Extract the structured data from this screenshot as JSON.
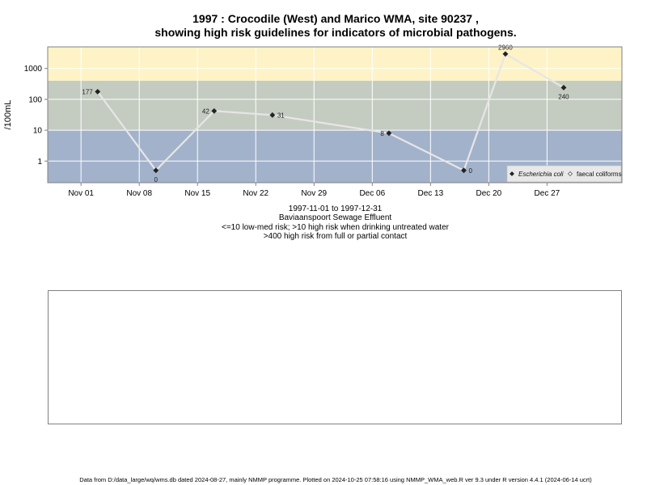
{
  "chart_data": {
    "type": "line",
    "title_line1": "1997 : Crocodile (West) and Marico WMA, site 90237 ,",
    "title_line2": "showing high risk guidelines for indicators of microbial pathogens.",
    "ylabel": "/100mL",
    "y_scale": "log10",
    "ylim": [
      0.2,
      5000
    ],
    "y_ticks": [
      {
        "value": 1,
        "label": "1"
      },
      {
        "value": 10,
        "label": "10"
      },
      {
        "value": 100,
        "label": "100"
      },
      {
        "value": 1000,
        "label": "1000"
      }
    ],
    "xlim": [
      "1997-10-28",
      "1998-01-05"
    ],
    "x_ticks": [
      {
        "date": "1997-11-01",
        "label": "Nov 01"
      },
      {
        "date": "1997-11-08",
        "label": "Nov 08"
      },
      {
        "date": "1997-11-15",
        "label": "Nov 15"
      },
      {
        "date": "1997-11-22",
        "label": "Nov 22"
      },
      {
        "date": "1997-11-29",
        "label": "Nov 29"
      },
      {
        "date": "1997-12-06",
        "label": "Dec 06"
      },
      {
        "date": "1997-12-13",
        "label": "Dec 13"
      },
      {
        "date": "1997-12-20",
        "label": "Dec 20"
      },
      {
        "date": "1997-12-27",
        "label": "Dec 27"
      }
    ],
    "risk_bands": [
      {
        "from": 400,
        "to": 5000,
        "color": "#fdf3c6"
      },
      {
        "from": 10,
        "to": 400,
        "color": "#c4ccc2"
      },
      {
        "from": 0.2,
        "to": 10,
        "color": "#a3b2cb"
      }
    ],
    "series": [
      {
        "name": "Escherichia coli",
        "marker": "diamond-filled",
        "line_color": "#e6e6e6",
        "points": [
          {
            "x": "1997-11-03",
            "y": 177,
            "label": "177",
            "label_pos": "left"
          },
          {
            "x": "1997-11-10",
            "y": 0.5,
            "label": "0",
            "label_pos": "below"
          },
          {
            "x": "1997-11-17",
            "y": 42,
            "label": "42",
            "label_pos": "left"
          },
          {
            "x": "1997-11-24",
            "y": 31,
            "label": "31",
            "label_pos": "right"
          },
          {
            "x": "1997-12-08",
            "y": 8,
            "label": "8",
            "label_pos": "left"
          },
          {
            "x": "1997-12-17",
            "y": 0.5,
            "label": "0",
            "label_pos": "right"
          },
          {
            "x": "1997-12-22",
            "y": 2960,
            "label": "2960",
            "label_pos": "above"
          },
          {
            "x": "1997-12-29",
            "y": 240,
            "label": "240",
            "label_pos": "below"
          }
        ]
      }
    ],
    "legend": {
      "placement": "bottom-right",
      "entries": [
        {
          "label": "Escherichia coli",
          "marker": "diamond-filled",
          "italic": true
        },
        {
          "label": "faecal coliforms",
          "marker": "diamond-open",
          "italic": false
        }
      ]
    },
    "grid": true
  },
  "caption": {
    "line1": "1997-11-01 to 1997-12-31",
    "line2": "Baviaanspoort Sewage Effluent",
    "line3": "<=10 low-med risk; >10 high risk when drinking untreated water",
    "line4": ">400 high risk from full or partial contact"
  },
  "footer": "Data from D:/data_large/wq/wms.db dated 2024-08-27, mainly NMMP programme. Plotted on 2024-10-25 07:58:16 using NMMP_WMA_web.R ver 9.3 under R version 4.4.1 (2024-06-14 ucrt)"
}
